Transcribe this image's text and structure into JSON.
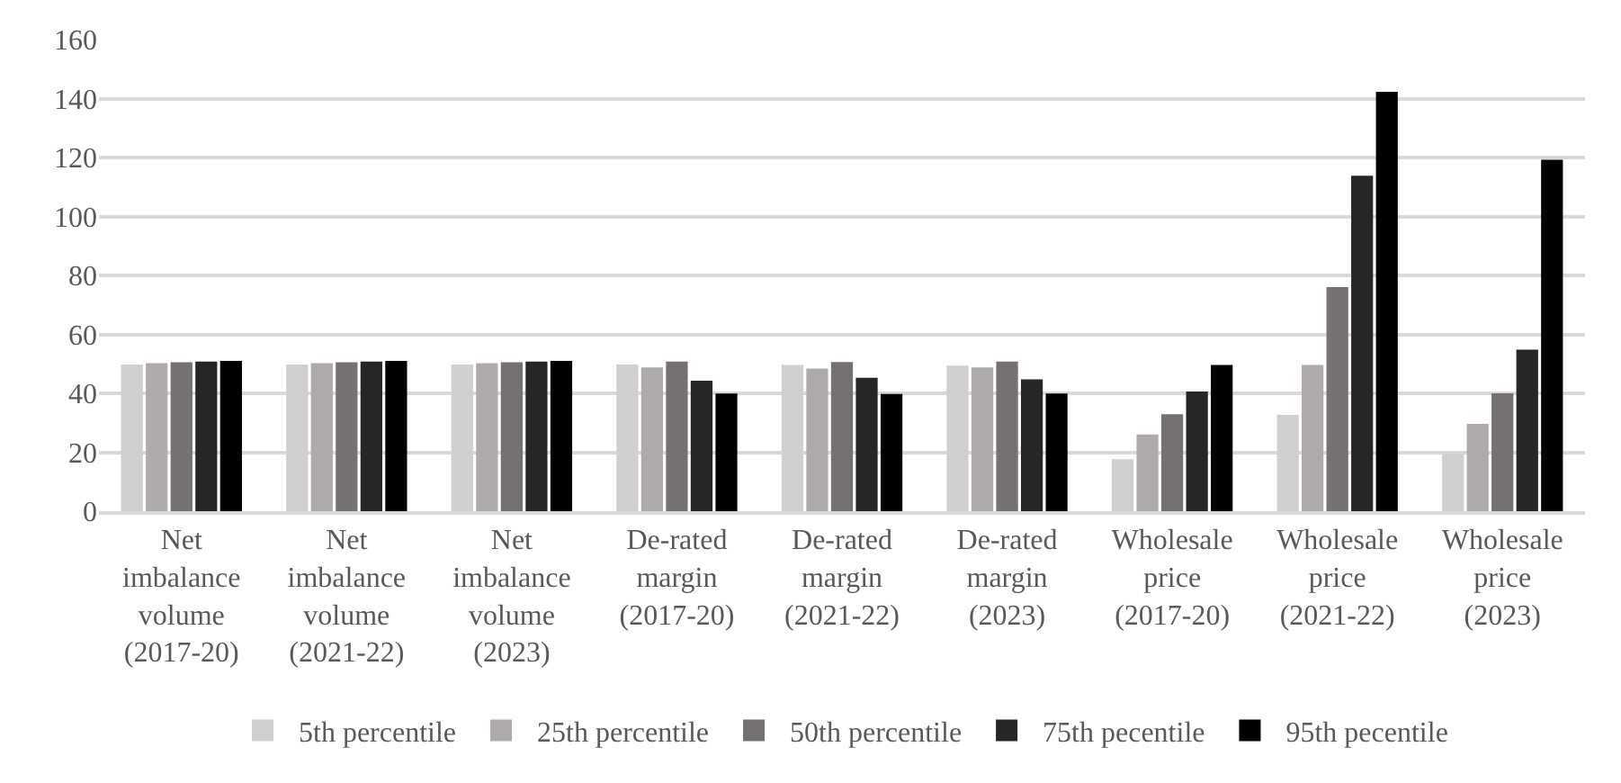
{
  "chart_data": {
    "type": "bar",
    "categories": [
      "Net imbalance volume (2017-20)",
      "Net imbalance volume (2021-22)",
      "Net imbalance volume (2023)",
      "De-rated margin (2017-20)",
      "De-rated margin (2021-22)",
      "De-rated margin (2023)",
      "Wholesale price (2017-20)",
      "Wholesale price (2021-22)",
      "Wholesale price (2023)"
    ],
    "series": [
      {
        "name": "5th percentile",
        "color": "#d0cece",
        "values": [
          49.8,
          49.8,
          49.8,
          49.8,
          49.6,
          49.4,
          17.6,
          32.7,
          19.4
        ]
      },
      {
        "name": "25th percentile",
        "color": "#aeaaaa",
        "values": [
          50.2,
          50.2,
          50.2,
          48.8,
          48.4,
          48.8,
          26.0,
          49.6,
          29.6
        ]
      },
      {
        "name": "50th percentile",
        "color": "#767171",
        "values": [
          50.5,
          50.5,
          50.5,
          50.8,
          50.6,
          50.8,
          32.9,
          76.0,
          40.0
        ]
      },
      {
        "name": "75th pecentile",
        "color": "#262626",
        "values": [
          50.8,
          50.8,
          50.8,
          44.3,
          45.3,
          44.7,
          40.6,
          113.8,
          54.8
        ]
      },
      {
        "name": "95th pecentile",
        "color": "#000000",
        "values": [
          51.0,
          51.0,
          51.0,
          39.9,
          39.8,
          39.9,
          49.6,
          142.3,
          119.2
        ]
      }
    ],
    "ylim": [
      0,
      160
    ],
    "yticks": [
      0,
      20,
      40,
      60,
      80,
      100,
      120,
      140,
      160
    ],
    "grid": "y",
    "legend": "bottom"
  }
}
